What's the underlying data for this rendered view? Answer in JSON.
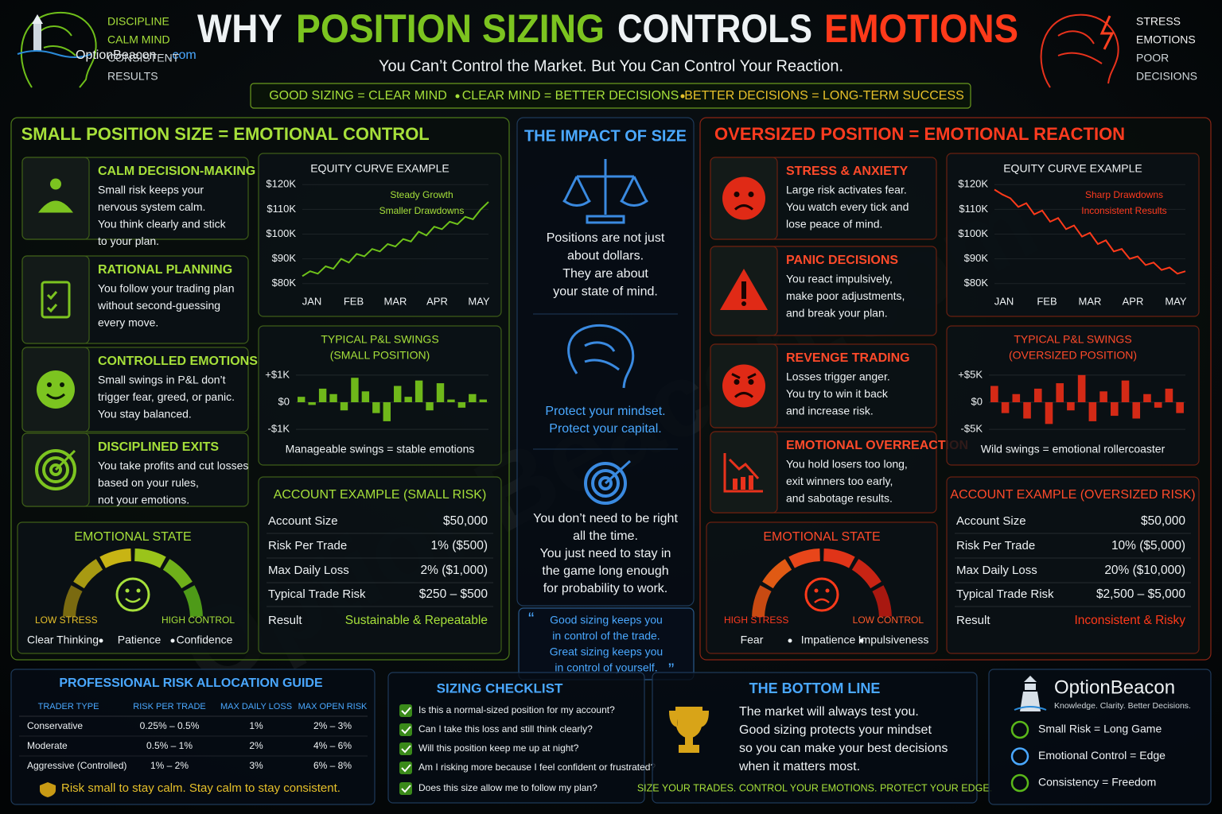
{
  "header": {
    "brand": "OptionBeacon",
    "brand_suffix": ".com",
    "left_words": [
      "DISCIPLINE",
      "CALM MIND",
      "CONSISTENT",
      "RESULTS"
    ],
    "title": [
      "WHY",
      "POSITION SIZING",
      "CONTROLS",
      "EMOTIONS"
    ],
    "subtitle": "You Can’t Control the Market.  But You Can Control Your Reaction.",
    "right_words": [
      "STRESS",
      "EMOTIONS",
      "POOR",
      "DECISIONS"
    ],
    "banner": [
      "GOOD SIZING = CLEAR MIND",
      "CLEAR MIND = BETTER DECISIONS",
      "BETTER DECISIONS = LONG-TERM SUCCESS"
    ]
  },
  "watermark": "OptionBeacon.com",
  "left": {
    "title": "SMALL POSITION SIZE = EMOTIONAL CONTROL",
    "items": [
      {
        "title": "CALM DECISION-MAKING",
        "text": [
          "Small risk keeps your",
          "nervous system calm.",
          "You think clearly and stick",
          "to your plan."
        ]
      },
      {
        "title": "RATIONAL PLANNING",
        "text": [
          "You follow your trading plan",
          "without second-guessing",
          "every move."
        ]
      },
      {
        "title": "CONTROLLED EMOTIONS",
        "text": [
          "Small swings in P&L don’t",
          "trigger fear, greed, or panic.",
          "You stay balanced."
        ]
      },
      {
        "title": "DISCIPLINED EXITS",
        "text": [
          "You take profits and cut losses",
          "based on your rules,",
          "not your emotions."
        ]
      }
    ],
    "equity": {
      "title": "EQUITY CURVE EXAMPLE",
      "note": [
        "Steady Growth",
        "Smaller Drawdowns"
      ],
      "ylim": [
        78000,
        122000
      ],
      "yticks": [
        {
          "value": 120000,
          "label": "$120K"
        },
        {
          "value": 110000,
          "label": "$110K"
        },
        {
          "value": 100000,
          "label": "$100K"
        },
        {
          "value": 90000,
          "label": "$90K"
        },
        {
          "value": 80000,
          "label": "$80K"
        }
      ],
      "months": [
        "JAN",
        "FEB",
        "MAR",
        "APR",
        "MAY"
      ],
      "values": [
        83000,
        85000,
        84000,
        87000,
        86000,
        90000,
        88500,
        92000,
        91000,
        94000,
        93000,
        96000,
        95000,
        98000,
        97000,
        101000,
        99500,
        103000,
        102000,
        105000,
        104000,
        107000,
        106000,
        110000,
        113000
      ]
    },
    "swings": {
      "title": [
        "TYPICAL P&L SWINGS",
        "(SMALL POSITION)"
      ],
      "ylim": [
        -1200,
        1200
      ],
      "yticks": [
        {
          "value": 1000,
          "label": "+$1K"
        },
        {
          "value": 0,
          "label": "$0"
        },
        {
          "value": -1000,
          "label": "-$1K"
        }
      ],
      "values": [
        200,
        -100,
        500,
        300,
        -300,
        900,
        400,
        -400,
        -700,
        600,
        200,
        800,
        -300,
        700,
        100,
        -200,
        300,
        100
      ],
      "caption": "Manageable swings = stable emotions"
    },
    "account": {
      "title": "ACCOUNT EXAMPLE (SMALL RISK)",
      "rows": [
        [
          "Account Size",
          "$50,000"
        ],
        [
          "Risk Per Trade",
          "1% ($500)"
        ],
        [
          "Max Daily Loss",
          "2% ($1,000)"
        ],
        [
          "Typical Trade Risk",
          "$250 – $500"
        ],
        [
          "Result",
          "Sustainable & Repeatable"
        ]
      ]
    },
    "gauge": {
      "title": "EMOTIONAL STATE",
      "low": "LOW STRESS",
      "high": "HIGH CONTROL",
      "traits": [
        "Clear Thinking",
        "Patience",
        "Confidence"
      ]
    }
  },
  "center": {
    "title": "THE IMPACT OF SIZE",
    "text1": [
      "Positions are not just",
      "about dollars.",
      "They are about",
      "your state of mind."
    ],
    "text2": [
      "Protect your mindset.",
      "Protect your capital."
    ],
    "text3": [
      "You don’t need to be right",
      "all the time.",
      "You just need to stay in",
      "the game long enough",
      "for probability to work."
    ],
    "quote": [
      "Good sizing keeps you",
      "in control of the trade.",
      "Great sizing keeps you",
      "in control of yourself."
    ]
  },
  "right": {
    "title": "OVERSIZED POSITION = EMOTIONAL REACTION",
    "items": [
      {
        "title": "STRESS & ANXIETY",
        "text": [
          "Large risk activates fear.",
          "You watch every tick and",
          "lose peace of mind."
        ]
      },
      {
        "title": "PANIC DECISIONS",
        "text": [
          "You react impulsively,",
          "make poor adjustments,",
          "and break your plan."
        ]
      },
      {
        "title": "REVENGE TRADING",
        "text": [
          "Losses trigger anger.",
          "You try to win it back",
          "and increase risk."
        ]
      },
      {
        "title": "EMOTIONAL OVERREACTION",
        "text": [
          "You hold losers too long,",
          "exit winners too early,",
          "and sabotage results."
        ]
      }
    ],
    "equity": {
      "title": "EQUITY CURVE EXAMPLE",
      "note": [
        "Sharp Drawdowns",
        "Inconsistent Results"
      ],
      "ylim": [
        78000,
        122000
      ],
      "yticks": [
        {
          "value": 120000,
          "label": "$120K"
        },
        {
          "value": 110000,
          "label": "$110K"
        },
        {
          "value": 100000,
          "label": "$100K"
        },
        {
          "value": 90000,
          "label": "$90K"
        },
        {
          "value": 80000,
          "label": "$80K"
        }
      ],
      "months": [
        "JAN",
        "FEB",
        "MAR",
        "APR",
        "MAY"
      ],
      "values": [
        118000,
        116000,
        114500,
        111000,
        112500,
        108000,
        109500,
        105000,
        106500,
        102000,
        103500,
        99000,
        100500,
        96000,
        97500,
        93000,
        94000,
        90000,
        91000,
        87500,
        88500,
        85500,
        86500,
        84000,
        85000
      ]
    },
    "swings": {
      "title": [
        "TYPICAL P&L SWINGS",
        "(OVERSIZED POSITION)"
      ],
      "ylim": [
        -6000,
        6000
      ],
      "yticks": [
        {
          "value": 5000,
          "label": "+$5K"
        },
        {
          "value": 0,
          "label": "$0"
        },
        {
          "value": -5000,
          "label": "-$5K"
        }
      ],
      "values": [
        3000,
        -2000,
        1500,
        -3000,
        2500,
        -4000,
        3500,
        -1500,
        5000,
        -3500,
        2000,
        -2500,
        4000,
        -3000,
        1500,
        -1000,
        2500,
        -2000
      ],
      "caption": "Wild swings = emotional rollercoaster"
    },
    "account": {
      "title": "ACCOUNT EXAMPLE (OVERSIZED RISK)",
      "rows": [
        [
          "Account Size",
          "$50,000"
        ],
        [
          "Risk Per Trade",
          "10% ($5,000)"
        ],
        [
          "Max Daily Loss",
          "20% ($10,000)"
        ],
        [
          "Typical Trade Risk",
          "$2,500 – $5,000"
        ],
        [
          "Result",
          "Inconsistent & Risky"
        ]
      ]
    },
    "gauge": {
      "title": "EMOTIONAL STATE",
      "low": "HIGH STRESS",
      "high": "LOW CONTROL",
      "traits": [
        "Fear",
        "Impatience",
        "Impulsiveness"
      ]
    }
  },
  "guide": {
    "title": "PROFESSIONAL RISK ALLOCATION GUIDE",
    "headers": [
      "TRADER TYPE",
      "RISK PER TRADE",
      "MAX DAILY LOSS",
      "MAX OPEN RISK"
    ],
    "rows": [
      [
        "Conservative",
        "0.25% – 0.5%",
        "1%",
        "2% – 3%"
      ],
      [
        "Moderate",
        "0.5% – 1%",
        "2%",
        "4% – 6%"
      ],
      [
        "Aggressive (Controlled)",
        "1% – 2%",
        "3%",
        "6% – 8%"
      ]
    ],
    "footer": "Risk small to stay calm.  Stay calm to stay consistent."
  },
  "checklist": {
    "title": "SIZING CHECKLIST",
    "items": [
      "Is this a normal-sized position for my account?",
      "Can I take this loss and still think clearly?",
      "Will this position keep me up at night?",
      "Am I risking more because I feel confident or frustrated?",
      "Does this size allow me to follow my plan?"
    ]
  },
  "bottom_line": {
    "title": "THE BOTTOM LINE",
    "text": [
      "The market will always test you.",
      "Good sizing protects your mindset",
      "so you can make your best decisions",
      "when it matters most."
    ],
    "tagline": "SIZE YOUR TRADES. CONTROL YOUR EMOTIONS. PROTECT YOUR EDGE."
  },
  "brand": {
    "name": "OptionBeacon",
    "tagline": "Knowledge. Clarity. Better Decisions.",
    "items": [
      "Small Risk = Long Game",
      "Emotional Control = Edge",
      "Consistency = Freedom"
    ]
  }
}
